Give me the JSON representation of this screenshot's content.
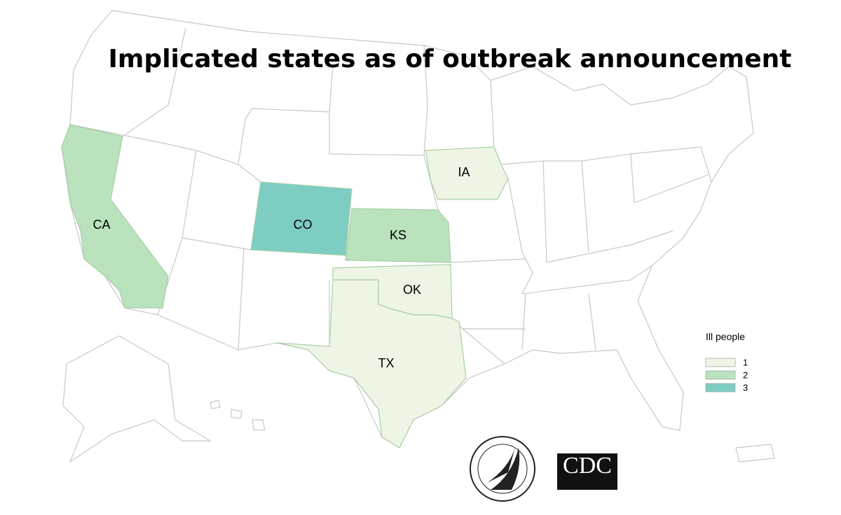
{
  "title": "Implicated states as of outbreak announcement",
  "legend": {
    "title": "Ill people",
    "items": [
      {
        "value": 1,
        "color": "#eef5e4"
      },
      {
        "value": 2,
        "color": "#b9e2bd"
      },
      {
        "value": 3,
        "color": "#7dcdc3"
      }
    ]
  },
  "states": [
    {
      "label": "CA",
      "ill": 2
    },
    {
      "label": "CO",
      "ill": 3
    },
    {
      "label": "KS",
      "ill": 2
    },
    {
      "label": "IA",
      "ill": 1
    },
    {
      "label": "OK",
      "ill": 1
    },
    {
      "label": "TX",
      "ill": 1
    }
  ],
  "logo": {
    "cdc": "CDC"
  }
}
